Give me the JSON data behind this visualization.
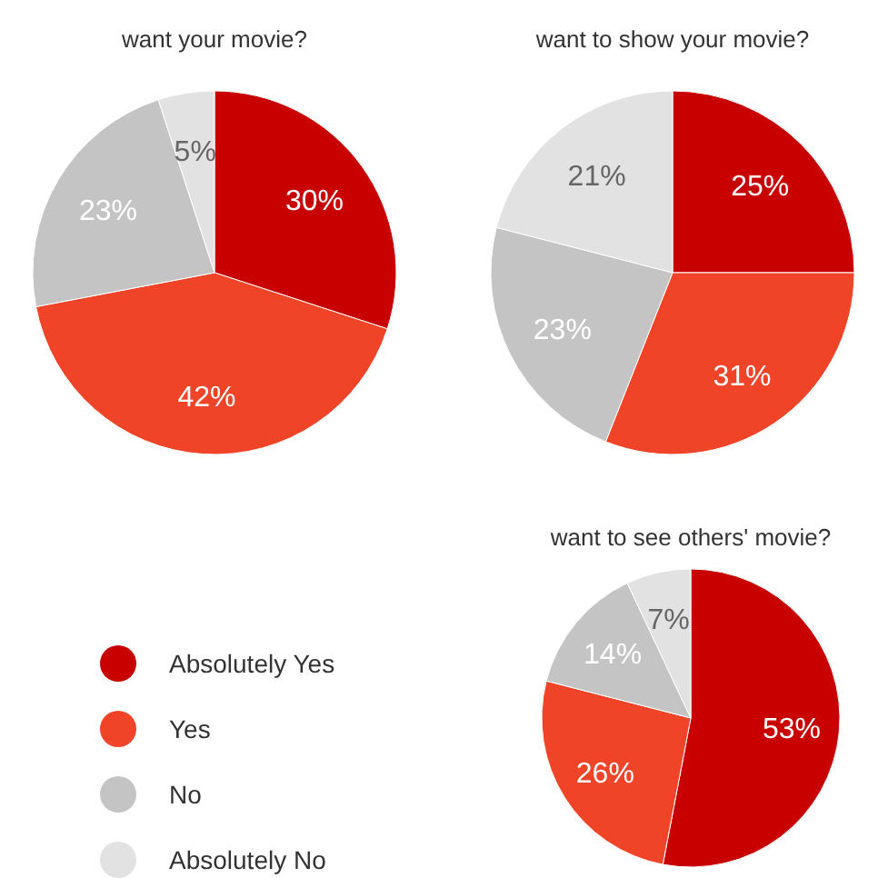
{
  "chart_data": [
    {
      "type": "pie",
      "title": "want your movie?",
      "categories": [
        null,
        null,
        null,
        null
      ],
      "values": [
        30,
        42,
        23,
        5
      ],
      "value_labels": [
        "30%",
        "42%",
        "23%",
        "5%"
      ],
      "colors": [
        "#c80000",
        "#f04428",
        "#c4c4c4",
        "#e2e2e2"
      ],
      "legend": false
    },
    {
      "type": "pie",
      "title": "want to show your movie?",
      "categories": [
        null,
        null,
        null,
        null
      ],
      "values": [
        25,
        31,
        23,
        21
      ],
      "value_labels": [
        "25%",
        "31%",
        "23%",
        "21%"
      ],
      "colors": [
        "#c80000",
        "#f04428",
        "#c4c4c4",
        "#e2e2e2"
      ],
      "legend": false
    },
    {
      "type": "pie",
      "title": "want to see others' movie?",
      "categories": [
        "Absolutely Yes",
        "Yes",
        "No",
        "Absolutely No"
      ],
      "values": [
        53,
        26,
        14,
        7
      ],
      "value_labels": [
        "53%",
        "26%",
        "14%",
        "7%"
      ],
      "colors": [
        "#c80000",
        "#f04428",
        "#c4c4c4",
        "#e2e2e2"
      ],
      "legend": "left"
    }
  ]
}
